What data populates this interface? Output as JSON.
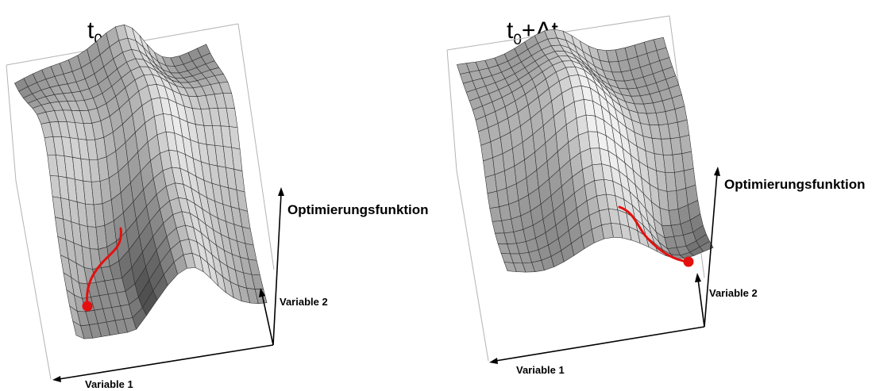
{
  "figure": {
    "left_panel": {
      "title_base": "t",
      "title_sub": "0",
      "title_tail": "",
      "z_axis_label": "Optimierungsfunktion",
      "y_axis_label": "Variable 2",
      "x_axis_label": "Variable 1"
    },
    "right_panel": {
      "title_base": "t",
      "title_sub": "0",
      "title_tail": "+Δt",
      "z_axis_label": "Optimierungsfunktion",
      "y_axis_label": "Variable 2",
      "x_axis_label": "Variable 1"
    },
    "colors": {
      "path": "#e41010",
      "axis": "#000000",
      "box": "#b4b4b4",
      "surface_light": "#f0f0f0",
      "surface_dark": "#3c3c3c"
    }
  }
}
